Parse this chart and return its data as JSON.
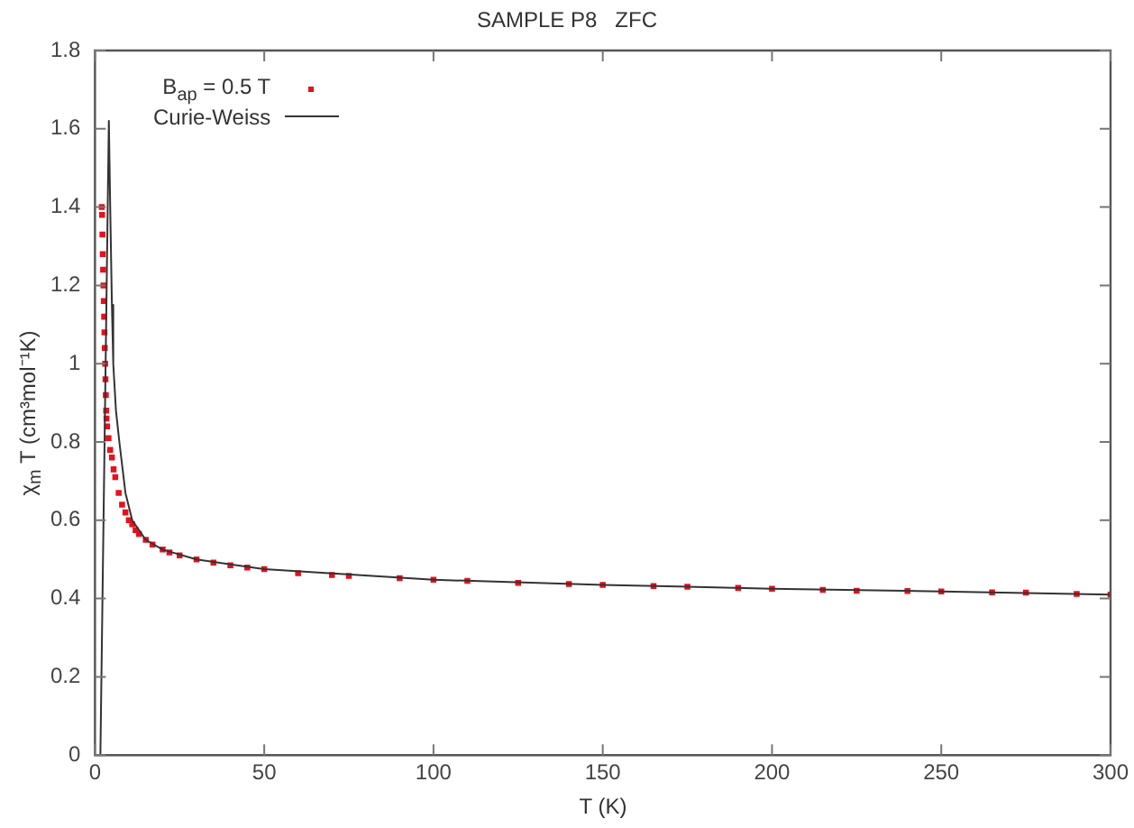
{
  "chart_data": {
    "type": "scatter",
    "title": "SAMPLE P8   ZFC",
    "xlabel": "T (K)",
    "ylabel": "χ$_{m}$ T (cm³mol⁻¹K)",
    "xlim": [
      0,
      300
    ],
    "ylim": [
      0,
      1.8
    ],
    "xticks": [
      0,
      50,
      100,
      150,
      200,
      250,
      300
    ],
    "yticks": [
      0,
      0.2,
      0.4,
      0.6,
      0.8,
      1,
      1.2,
      1.4,
      1.6,
      1.8
    ],
    "grid": false,
    "legend": "top left",
    "marker": "square",
    "series": [
      {
        "name": "B$_{ap}$ = 0.5 T",
        "type": "scatter",
        "color": "#e8101c",
        "x": [
          2,
          2.1,
          2.2,
          2.3,
          2.4,
          2.5,
          2.6,
          2.7,
          2.8,
          2.9,
          3,
          3.1,
          3.2,
          3.3,
          3.4,
          3.6,
          4,
          4.5,
          5,
          5.5,
          6,
          7,
          8,
          9,
          10,
          11,
          12,
          13,
          15,
          17,
          20,
          22,
          25,
          30,
          35,
          40,
          45,
          50,
          60,
          70,
          75,
          90,
          100,
          110,
          125,
          140,
          150,
          165,
          175,
          190,
          200,
          215,
          225,
          240,
          250,
          265,
          275,
          290,
          300
        ],
        "values": [
          1.4,
          1.38,
          1.33,
          1.28,
          1.24,
          1.2,
          1.16,
          1.12,
          1.08,
          1.04,
          1.0,
          0.96,
          0.92,
          0.88,
          0.86,
          0.84,
          0.81,
          0.78,
          0.76,
          0.73,
          0.71,
          0.67,
          0.64,
          0.62,
          0.6,
          0.59,
          0.575,
          0.565,
          0.55,
          0.538,
          0.525,
          0.518,
          0.51,
          0.5,
          0.492,
          0.485,
          0.479,
          0.475,
          0.465,
          0.46,
          0.458,
          0.452,
          0.448,
          0.445,
          0.44,
          0.437,
          0.435,
          0.432,
          0.43,
          0.427,
          0.425,
          0.422,
          0.42,
          0.419,
          0.418,
          0.416,
          0.415,
          0.412,
          0.41
        ]
      },
      {
        "name": "Curie-Weiss",
        "type": "line",
        "color": "#333333",
        "marker": "none",
        "x": [
          1.6,
          4.1,
          4.5,
          5,
          5.4,
          6.2,
          7.2,
          9,
          11,
          15,
          20,
          30,
          50,
          100,
          150,
          200,
          250,
          300
        ],
        "values": [
          0,
          1.62,
          1.4,
          1.15,
          1.0,
          0.88,
          0.8,
          0.67,
          0.6,
          0.55,
          0.525,
          0.5,
          0.475,
          0.448,
          0.435,
          0.425,
          0.418,
          0.41
        ]
      }
    ]
  }
}
